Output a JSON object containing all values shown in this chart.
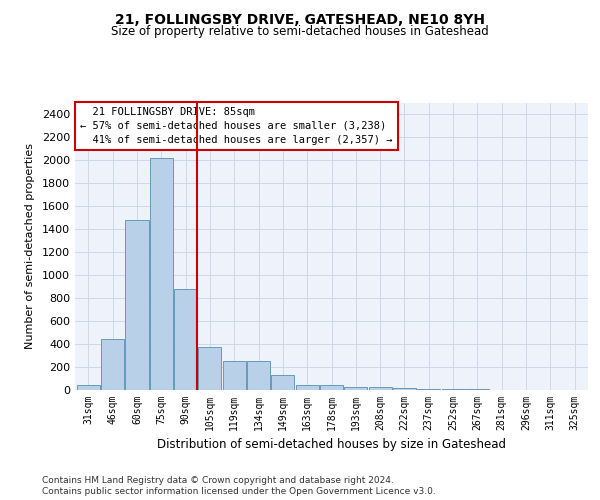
{
  "title1": "21, FOLLINGSBY DRIVE, GATESHEAD, NE10 8YH",
  "title2": "Size of property relative to semi-detached houses in Gateshead",
  "xlabel": "Distribution of semi-detached houses by size in Gateshead",
  "ylabel": "Number of semi-detached properties",
  "footer1": "Contains HM Land Registry data © Crown copyright and database right 2024.",
  "footer2": "Contains public sector information licensed under the Open Government Licence v3.0.",
  "bar_labels": [
    "31sqm",
    "46sqm",
    "60sqm",
    "75sqm",
    "90sqm",
    "105sqm",
    "119sqm",
    "134sqm",
    "149sqm",
    "163sqm",
    "178sqm",
    "193sqm",
    "208sqm",
    "222sqm",
    "237sqm",
    "252sqm",
    "267sqm",
    "281sqm",
    "296sqm",
    "311sqm",
    "325sqm"
  ],
  "bar_values": [
    45,
    440,
    1480,
    2020,
    880,
    375,
    255,
    255,
    130,
    40,
    40,
    30,
    25,
    18,
    12,
    8,
    5,
    3,
    3,
    2,
    2
  ],
  "bar_color": "#b8d0e8",
  "bar_edge_color": "#6699bb",
  "ylim": [
    0,
    2500
  ],
  "yticks": [
    0,
    200,
    400,
    600,
    800,
    1000,
    1200,
    1400,
    1600,
    1800,
    2000,
    2200,
    2400
  ],
  "property_label": "21 FOLLINGSBY DRIVE: 85sqm",
  "pct_smaller": 57,
  "count_smaller": "3,238",
  "pct_larger": 41,
  "count_larger": "2,357",
  "red_line_color": "#cc0000",
  "annotation_box_color": "#cc0000",
  "grid_color": "#ccd8ea",
  "background_color": "#eef2fa"
}
